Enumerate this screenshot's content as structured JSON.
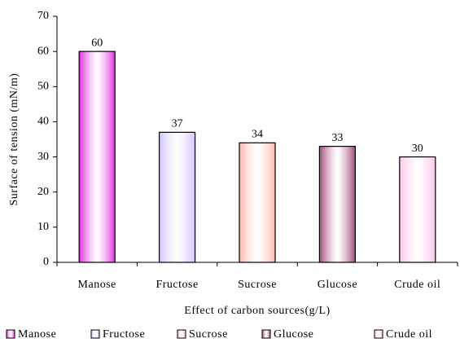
{
  "chart_data": {
    "type": "bar",
    "x_label": "Effect of carbon sources(g/L)",
    "y_label": "Surface of tension (mN/m)",
    "categories": [
      "Manose",
      "Fructose",
      "Sucrose",
      "Glucose",
      "Crude oil"
    ],
    "values": [
      60,
      37,
      34,
      33,
      30
    ],
    "colors": [
      "#e030e0",
      "#d4c4ff",
      "#ffb8b0",
      "#a04a78",
      "#ffc4e6"
    ],
    "ylim": [
      0,
      70
    ],
    "yticks": [
      0,
      10,
      20,
      30,
      40,
      50,
      60,
      70
    ],
    "legend": "bottom"
  }
}
